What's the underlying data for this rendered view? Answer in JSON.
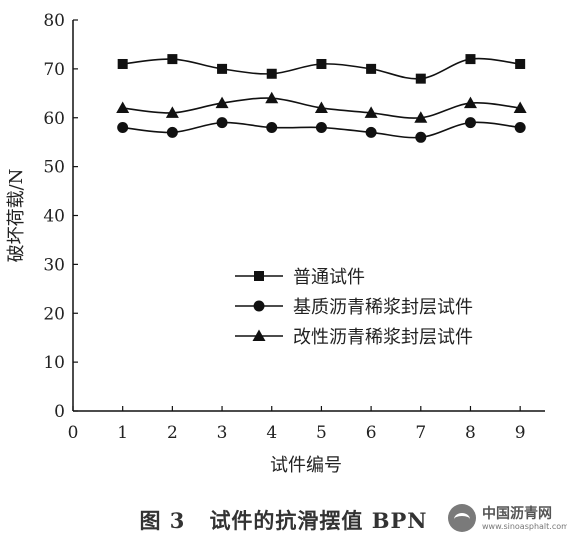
{
  "chart_data": {
    "type": "line",
    "xlabel": "试件编号",
    "ylabel": "破坏荷载/N",
    "xlim": [
      0,
      9.5
    ],
    "ylim": [
      0,
      80
    ],
    "x_ticks": [
      0,
      1,
      2,
      3,
      4,
      5,
      6,
      7,
      8,
      9
    ],
    "y_ticks": [
      0,
      10,
      20,
      30,
      40,
      50,
      60,
      70,
      80
    ],
    "x": [
      1,
      2,
      3,
      4,
      5,
      6,
      7,
      8,
      9
    ],
    "series": [
      {
        "name": "普通试件",
        "marker": "square",
        "values": [
          71,
          72,
          70,
          69,
          71,
          70,
          68,
          72,
          71
        ]
      },
      {
        "name": "基质沥青稀浆封层试件",
        "marker": "circle",
        "values": [
          58,
          57,
          59,
          58,
          58,
          57,
          56,
          59,
          58
        ]
      },
      {
        "name": "改性沥青稀浆封层试件",
        "marker": "triangle",
        "values": [
          62,
          61,
          63,
          64,
          62,
          61,
          60,
          63,
          62
        ]
      }
    ],
    "legend_position": "inside-lower-middle",
    "grid": false,
    "line_color": "#111111"
  },
  "caption": {
    "figure_number": "图 3",
    "title": "试件的抗滑摆值 BPN"
  },
  "watermark": {
    "title": "中国沥青网",
    "url": "www.sinoasphalt.com"
  }
}
